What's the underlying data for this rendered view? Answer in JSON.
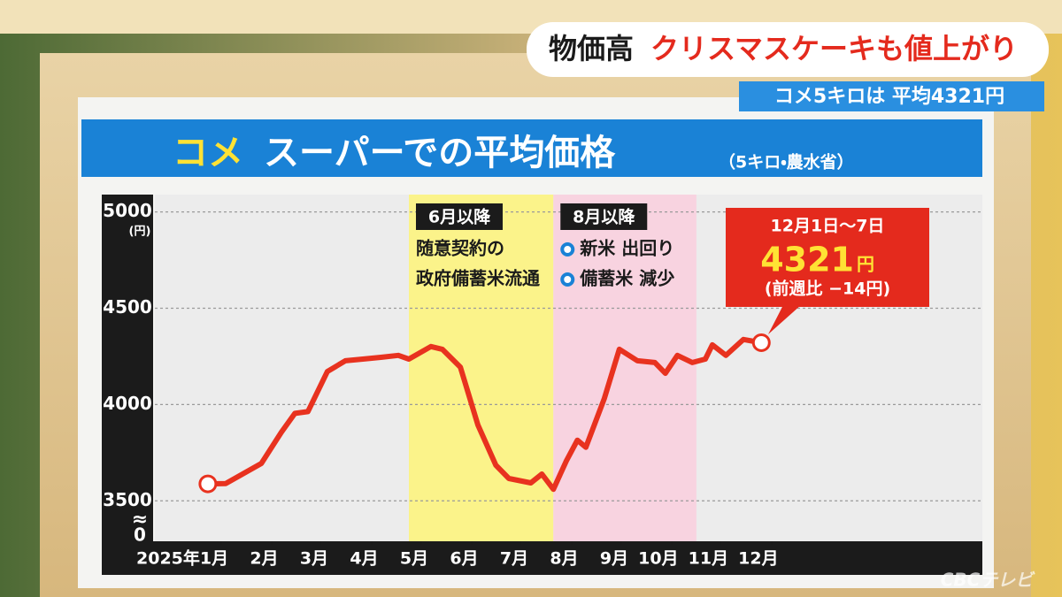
{
  "header": {
    "tag": "物価高",
    "headline": "クリスマスケーキも値上がり",
    "subline": "コメ5キロは 平均4321円",
    "watermark": "CBCテレビ"
  },
  "chart_data": {
    "type": "line",
    "title": "コメ",
    "subtitle": "スーパーでの平均価格",
    "source": "（5キロ・農水省）",
    "y_unit": "(円)",
    "y_break_label": "0",
    "x": [
      0.73,
      1.09,
      1.8,
      2.2,
      2.47,
      2.73,
      3.12,
      3.48,
      3.83,
      4.19,
      4.54,
      4.75,
      5.19,
      5.42,
      5.78,
      6.13,
      6.49,
      6.75,
      7.19,
      7.41,
      7.64,
      7.9,
      8.12,
      8.29,
      8.66,
      8.96,
      9.32,
      9.67,
      9.88,
      10.12,
      10.42,
      10.68,
      10.82,
      11.09,
      11.44,
      11.8
    ],
    "values": [
      3588,
      3590,
      3694,
      3856,
      3954,
      3963,
      4171,
      4227,
      4236,
      4245,
      4255,
      4236,
      4301,
      4287,
      4194,
      3894,
      3685,
      3616,
      3593,
      3639,
      3560,
      3708,
      3815,
      3778,
      4032,
      4287,
      4227,
      4218,
      4162,
      4255,
      4218,
      4236,
      4310,
      4255,
      4338,
      4321
    ],
    "color": "#e8321f",
    "xlim": [
      -0.33,
      16.22
    ],
    "xticks": [
      {
        "value": 1,
        "label": "2025年1月"
      },
      {
        "value": 2,
        "label": "2月"
      },
      {
        "value": 3,
        "label": "3月"
      },
      {
        "value": 4,
        "label": "4月"
      },
      {
        "value": 5,
        "label": "5月"
      },
      {
        "value": 6,
        "label": "6月"
      },
      {
        "value": 7,
        "label": "7月"
      },
      {
        "value": 8,
        "label": "8月"
      },
      {
        "value": 9,
        "label": "9月"
      },
      {
        "value": 10,
        "label": "10月"
      },
      {
        "value": 11,
        "label": "11月"
      },
      {
        "value": 12,
        "label": "12月"
      }
    ],
    "ylim": [
      3290,
      5090
    ],
    "yticks": [
      3500,
      4000,
      4500,
      5000
    ],
    "grid": true,
    "bands": [
      {
        "from": 4.75,
        "to": 7.64,
        "color": "#fbf38a",
        "label": "6月以降",
        "lines": [
          "随意契約の",
          "政府備蓄米流通"
        ]
      },
      {
        "from": 7.64,
        "to": 10.5,
        "color": "#f8d3e0",
        "label": "8月以降",
        "lines": [
          "新米 出回り",
          "備蓄米 減少"
        ]
      }
    ],
    "callout": {
      "date": "12月1日～7日",
      "value": 4321,
      "unit": "円",
      "change": "(前週比 −14円)"
    }
  }
}
